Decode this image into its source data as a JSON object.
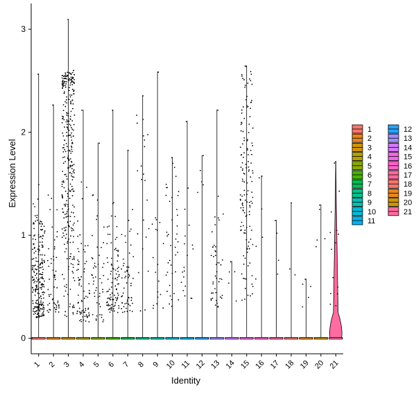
{
  "chart_data": {
    "type": "violin",
    "xlabel": "Identity",
    "ylabel": "Expression Level",
    "categories": [
      "1",
      "2",
      "3",
      "4",
      "5",
      "6",
      "7",
      "8",
      "9",
      "10",
      "11",
      "12",
      "13",
      "14",
      "15",
      "16",
      "17",
      "18",
      "19",
      "20",
      "21"
    ],
    "ylim": [
      -0.15,
      3.25
    ],
    "yticks": [
      0,
      1,
      2,
      3
    ],
    "grid": false,
    "legend_position": "right",
    "colors": [
      "#F8766D",
      "#E8851E",
      "#D09400",
      "#B2A100",
      "#89AC00",
      "#45B500",
      "#00BC51",
      "#00C087",
      "#00C0B2",
      "#00BCD6",
      "#00B3F2",
      "#29A3FF",
      "#9C8DFF",
      "#D277FF",
      "#F166E8",
      "#FF61C7",
      "#FF689E",
      "#F8766D",
      "#E8851E",
      "#D09400",
      "#FF6C9F"
    ],
    "series": [
      {
        "category": "1",
        "max": 2.57,
        "dense_max": 1.6,
        "dense_min": 0.2,
        "n_points": 230,
        "center": 0.6,
        "spread": 0.35,
        "violin_width": 0.02
      },
      {
        "category": "2",
        "max": 2.27,
        "dense_max": 1.4,
        "dense_min": 0.25,
        "n_points": 55,
        "center": 0.5,
        "spread": 0.45,
        "violin_width": 0.02
      },
      {
        "category": "3",
        "max": 3.1,
        "dense_max": 2.6,
        "dense_min": 0.2,
        "n_points": 330,
        "center": 1.8,
        "spread": 0.7,
        "violin_width": 0.02
      },
      {
        "category": "4",
        "max": 2.22,
        "dense_max": 1.6,
        "dense_min": 0.15,
        "n_points": 75,
        "center": 0.4,
        "spread": 0.4,
        "violin_width": 0.02
      },
      {
        "category": "5",
        "max": 1.9,
        "dense_max": 1.4,
        "dense_min": 0.15,
        "n_points": 50,
        "center": 0.5,
        "spread": 0.45,
        "violin_width": 0.02
      },
      {
        "category": "6",
        "max": 2.22,
        "dense_max": 1.5,
        "dense_min": 0.25,
        "n_points": 95,
        "center": 0.55,
        "spread": 0.4,
        "violin_width": 0.02
      },
      {
        "category": "7",
        "max": 1.83,
        "dense_max": 1.4,
        "dense_min": 0.25,
        "n_points": 55,
        "center": 0.5,
        "spread": 0.4,
        "violin_width": 0.02
      },
      {
        "category": "8",
        "max": 2.36,
        "dense_max": 2.2,
        "dense_min": 0.25,
        "n_points": 22,
        "center": 1.6,
        "spread": 0.7,
        "violin_width": 0.02
      },
      {
        "category": "9",
        "max": 2.59,
        "dense_max": 1.8,
        "dense_min": 0.28,
        "n_points": 18,
        "center": 0.5,
        "spread": 0.5,
        "violin_width": 0.02
      },
      {
        "category": "10",
        "max": 1.76,
        "dense_max": 1.7,
        "dense_min": 0.3,
        "n_points": 40,
        "center": 0.8,
        "spread": 0.5,
        "violin_width": 0.02
      },
      {
        "category": "11",
        "max": 2.11,
        "dense_max": 1.5,
        "dense_min": 0.3,
        "n_points": 18,
        "center": 0.7,
        "spread": 0.5,
        "violin_width": 0.02
      },
      {
        "category": "12",
        "max": 1.78,
        "dense_max": 1.7,
        "dense_min": 0.8,
        "n_points": 4,
        "center": 1.3,
        "spread": 0.4,
        "violin_width": 0.02
      },
      {
        "category": "13",
        "max": 2.22,
        "dense_max": 2.1,
        "dense_min": 0.3,
        "n_points": 45,
        "center": 0.6,
        "spread": 0.35,
        "violin_width": 0.02
      },
      {
        "category": "14",
        "max": 0.75,
        "dense_max": 0.75,
        "dense_min": 0.35,
        "n_points": 4,
        "center": 0.5,
        "spread": 0.15,
        "violin_width": 0.02
      },
      {
        "category": "15",
        "max": 2.65,
        "dense_max": 2.65,
        "dense_min": 0.35,
        "n_points": 140,
        "center": 1.5,
        "spread": 0.7,
        "violin_width": 0.02
      },
      {
        "category": "16",
        "max": 1.58,
        "dense_max": 1.58,
        "dense_min": 0.35,
        "n_points": 5,
        "center": 1.0,
        "spread": 0.5,
        "violin_width": 0.02
      },
      {
        "category": "17",
        "max": 1.15,
        "dense_max": 1.15,
        "dense_min": 0.4,
        "n_points": 3,
        "center": 0.8,
        "spread": 0.3,
        "violin_width": 0.02
      },
      {
        "category": "18",
        "max": 1.32,
        "dense_max": 0.8,
        "dense_min": 0.6,
        "n_points": 2,
        "center": 0.7,
        "spread": 0.1,
        "violin_width": 0.02
      },
      {
        "category": "19",
        "max": 0.58,
        "dense_max": 0.58,
        "dense_min": 0.3,
        "n_points": 4,
        "center": 0.45,
        "spread": 0.1,
        "violin_width": 0.02
      },
      {
        "category": "20",
        "max": 1.3,
        "dense_max": 1.3,
        "dense_min": 0.5,
        "n_points": 4,
        "center": 0.9,
        "spread": 0.3,
        "violin_width": 0.02
      },
      {
        "category": "21",
        "max": 1.72,
        "dense_max": 1.72,
        "dense_min": 0.3,
        "n_points": 14,
        "center": 0.8,
        "spread": 0.5,
        "violin_width": 0.3
      }
    ],
    "legend": {
      "items": [
        "1",
        "2",
        "3",
        "4",
        "5",
        "6",
        "7",
        "8",
        "9",
        "10",
        "11",
        "12",
        "13",
        "14",
        "15",
        "16",
        "17",
        "18",
        "19",
        "20",
        "21"
      ],
      "columns": 2
    }
  }
}
